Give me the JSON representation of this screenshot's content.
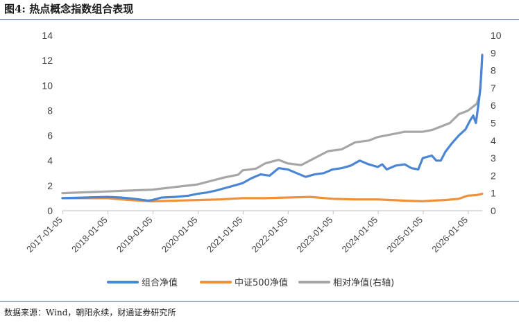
{
  "title": "图4: 热点概念指数组合表现",
  "source": "数据来源：Wind，朝阳永续，财通证券研究所",
  "chart_data": {
    "type": "line",
    "left_axis": {
      "ylim": [
        0,
        14
      ],
      "ticks": [
        "0",
        "2",
        "4",
        "6",
        "8",
        "10",
        "12",
        "14"
      ]
    },
    "right_axis": {
      "ylim": [
        0,
        10
      ],
      "ticks": [
        "0",
        "1",
        "2",
        "3",
        "4",
        "5",
        "6",
        "7",
        "8",
        "9",
        "10"
      ]
    },
    "x_ticks": [
      "2017-01-05",
      "2018-01-05",
      "2019-01-05",
      "2020-01-05",
      "2021-01-05",
      "2022-01-05",
      "2023-01-05",
      "2024-01-05",
      "2025-01-05",
      "2026-01-05"
    ],
    "x_range": [
      2017.0,
      2026.32
    ],
    "legend_position": "bottom",
    "series": [
      {
        "name": "组合净值",
        "axis": "left",
        "color": "#4a86d4",
        "x": [
          2017.0,
          2017.5,
          2018.0,
          2018.3,
          2018.6,
          2018.9,
          2019.0,
          2019.2,
          2019.5,
          2019.8,
          2020.0,
          2020.2,
          2020.4,
          2020.6,
          2020.8,
          2021.0,
          2021.2,
          2021.4,
          2021.6,
          2021.8,
          2022.0,
          2022.2,
          2022.4,
          2022.6,
          2022.8,
          2023.0,
          2023.2,
          2023.4,
          2023.6,
          2023.8,
          2024.0,
          2024.1,
          2024.2,
          2024.4,
          2024.6,
          2024.75,
          2024.9,
          2025.0,
          2025.2,
          2025.3,
          2025.4,
          2025.5,
          2025.65,
          2025.8,
          2025.95,
          2026.05,
          2026.12,
          2026.18,
          2026.24,
          2026.28,
          2026.32
        ],
        "values": [
          1.0,
          1.05,
          1.1,
          1.05,
          0.95,
          0.8,
          0.85,
          1.05,
          1.1,
          1.2,
          1.35,
          1.45,
          1.6,
          1.8,
          2.0,
          2.2,
          2.6,
          2.9,
          2.8,
          3.4,
          3.3,
          3.0,
          2.7,
          2.9,
          3.0,
          3.3,
          3.4,
          3.6,
          4.0,
          3.7,
          3.5,
          3.7,
          3.3,
          3.6,
          3.7,
          3.4,
          3.3,
          4.2,
          4.4,
          4.0,
          4.0,
          4.7,
          5.4,
          6.0,
          6.5,
          7.2,
          7.6,
          7.0,
          8.6,
          9.8,
          12.4
        ]
      },
      {
        "name": "中证500净值",
        "axis": "left",
        "color": "#f0913a",
        "x": [
          2017.0,
          2017.5,
          2018.0,
          2018.5,
          2019.0,
          2019.5,
          2020.0,
          2020.5,
          2021.0,
          2021.5,
          2022.0,
          2022.5,
          2023.0,
          2023.5,
          2024.0,
          2024.3,
          2024.6,
          2025.0,
          2025.2,
          2025.5,
          2025.8,
          2026.0,
          2026.2,
          2026.32
        ],
        "values": [
          1.0,
          1.0,
          1.0,
          0.85,
          0.75,
          0.8,
          0.85,
          0.9,
          1.0,
          1.0,
          1.05,
          1.1,
          0.95,
          0.9,
          0.9,
          0.85,
          0.8,
          0.75,
          0.8,
          0.85,
          0.95,
          1.2,
          1.25,
          1.35
        ]
      },
      {
        "name": "相对净值(右轴)",
        "axis": "right",
        "color": "#a6a6a6",
        "x": [
          2017.0,
          2017.5,
          2018.0,
          2018.5,
          2019.0,
          2019.5,
          2020.0,
          2020.3,
          2020.6,
          2020.9,
          2021.0,
          2021.3,
          2021.5,
          2021.8,
          2022.0,
          2022.3,
          2022.6,
          2022.9,
          2023.2,
          2023.5,
          2023.8,
          2024.0,
          2024.2,
          2024.4,
          2024.6,
          2024.8,
          2025.0,
          2025.2,
          2025.4,
          2025.6,
          2025.8,
          2026.0,
          2026.1,
          2026.2,
          2026.26,
          2026.3,
          2026.32
        ],
        "values": [
          1.0,
          1.05,
          1.1,
          1.15,
          1.2,
          1.35,
          1.5,
          1.7,
          1.9,
          2.05,
          2.3,
          2.4,
          2.7,
          2.9,
          2.7,
          2.6,
          3.0,
          3.4,
          3.5,
          3.9,
          4.0,
          4.2,
          4.3,
          4.4,
          4.5,
          4.5,
          4.5,
          4.6,
          4.8,
          5.0,
          5.5,
          5.7,
          5.9,
          6.1,
          6.6,
          7.8,
          8.9
        ]
      }
    ]
  }
}
